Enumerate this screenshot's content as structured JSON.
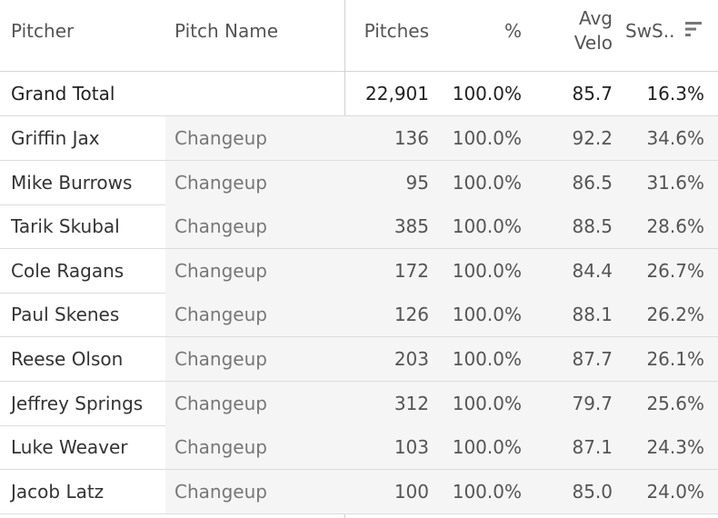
{
  "columns": {
    "pitcher": "Pitcher",
    "pitch_name": "Pitch Name",
    "pitches": "Pitches",
    "pct": "%",
    "avg_velo_line1": "Avg",
    "avg_velo_line2": "Velo",
    "sws": "SwS.."
  },
  "sort_icon": "sort-descending-icon",
  "grand_total": {
    "label": "Grand Total",
    "pitches": "22,901",
    "pct": "100.0%",
    "avg_velo": "85.7",
    "sws": "16.3%"
  },
  "rows": [
    {
      "pitcher": "Griffin Jax",
      "pitch_name": "Changeup",
      "pitches": "136",
      "pct": "100.0%",
      "avg_velo": "92.2",
      "sws": "34.6%"
    },
    {
      "pitcher": "Mike Burrows",
      "pitch_name": "Changeup",
      "pitches": "95",
      "pct": "100.0%",
      "avg_velo": "86.5",
      "sws": "31.6%"
    },
    {
      "pitcher": "Tarik Skubal",
      "pitch_name": "Changeup",
      "pitches": "385",
      "pct": "100.0%",
      "avg_velo": "88.5",
      "sws": "28.6%"
    },
    {
      "pitcher": "Cole Ragans",
      "pitch_name": "Changeup",
      "pitches": "172",
      "pct": "100.0%",
      "avg_velo": "84.4",
      "sws": "26.7%"
    },
    {
      "pitcher": "Paul Skenes",
      "pitch_name": "Changeup",
      "pitches": "126",
      "pct": "100.0%",
      "avg_velo": "88.1",
      "sws": "26.2%"
    },
    {
      "pitcher": "Reese Olson",
      "pitch_name": "Changeup",
      "pitches": "203",
      "pct": "100.0%",
      "avg_velo": "87.7",
      "sws": "26.1%"
    },
    {
      "pitcher": "Jeffrey Springs",
      "pitch_name": "Changeup",
      "pitches": "312",
      "pct": "100.0%",
      "avg_velo": "79.7",
      "sws": "25.6%"
    },
    {
      "pitcher": "Luke Weaver",
      "pitch_name": "Changeup",
      "pitches": "103",
      "pct": "100.0%",
      "avg_velo": "87.1",
      "sws": "24.3%"
    },
    {
      "pitcher": "Jacob Latz",
      "pitch_name": "Changeup",
      "pitches": "100",
      "pct": "100.0%",
      "avg_velo": "85.0",
      "sws": "24.0%"
    }
  ]
}
